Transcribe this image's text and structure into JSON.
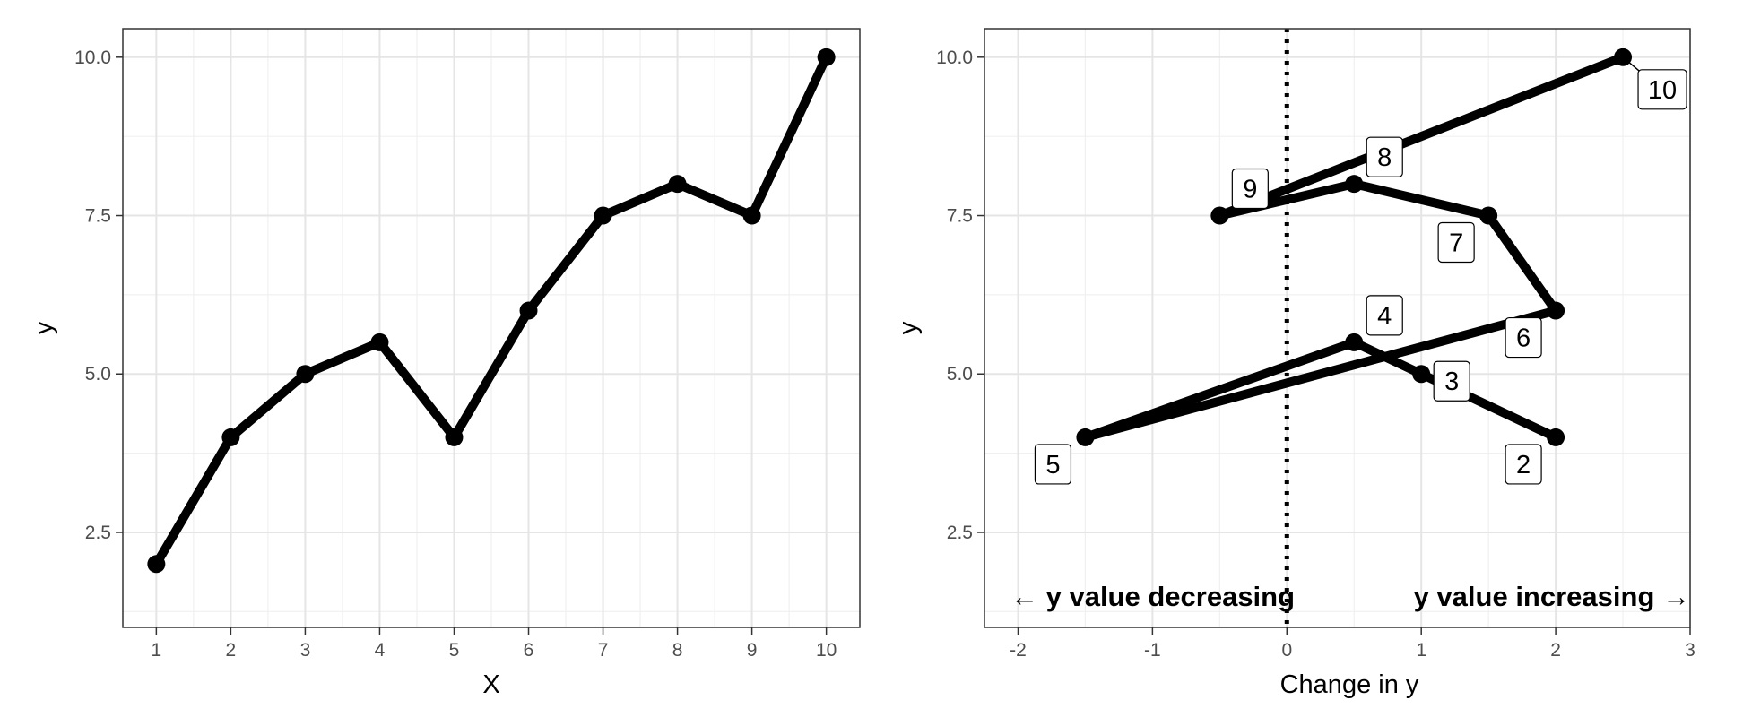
{
  "chart_data": [
    {
      "type": "line",
      "title": "",
      "xlabel": "X",
      "ylabel": "y",
      "xlim": [
        0.55,
        10.45
      ],
      "ylim": [
        1.0,
        10.45
      ],
      "xticks": [
        1,
        2,
        3,
        4,
        5,
        6,
        7,
        8,
        9,
        10
      ],
      "xtick_labels": [
        "1",
        "2",
        "3",
        "4",
        "5",
        "6",
        "7",
        "8",
        "9",
        "10"
      ],
      "yticks": [
        2.5,
        5.0,
        7.5,
        10.0
      ],
      "ytick_labels": [
        "2.5",
        "5.0",
        "7.5",
        "10.0"
      ],
      "grid": true,
      "points": [
        {
          "x": 1,
          "y": 2.0
        },
        {
          "x": 2,
          "y": 4.0
        },
        {
          "x": 3,
          "y": 5.0
        },
        {
          "x": 4,
          "y": 5.5
        },
        {
          "x": 5,
          "y": 4.0
        },
        {
          "x": 6,
          "y": 6.0
        },
        {
          "x": 7,
          "y": 7.5
        },
        {
          "x": 8,
          "y": 8.0
        },
        {
          "x": 9,
          "y": 7.5
        },
        {
          "x": 10,
          "y": 10.0
        }
      ]
    },
    {
      "type": "line",
      "title": "",
      "xlabel": "Change in y",
      "ylabel": "y",
      "xlim": [
        -2.25,
        3.0
      ],
      "ylim": [
        1.0,
        10.45
      ],
      "xticks": [
        -2,
        -1,
        0,
        1,
        2,
        3
      ],
      "xtick_labels": [
        "-2",
        "-1",
        "0",
        "1",
        "2",
        "3"
      ],
      "yticks": [
        2.5,
        5.0,
        7.5,
        10.0
      ],
      "ytick_labels": [
        "2.5",
        "5.0",
        "7.5",
        "10.0"
      ],
      "grid": true,
      "reference_line_x": 0,
      "annotation_left": "← y value decreasing",
      "annotation_right": "y value increasing →",
      "points": [
        {
          "x": 2.0,
          "y": 4.0,
          "label": "2"
        },
        {
          "x": 1.0,
          "y": 5.0,
          "label": "3"
        },
        {
          "x": 0.5,
          "y": 5.5,
          "label": "4"
        },
        {
          "x": -1.5,
          "y": 4.0,
          "label": "5"
        },
        {
          "x": 2.0,
          "y": 6.0,
          "label": "6"
        },
        {
          "x": 1.5,
          "y": 7.5,
          "label": "7"
        },
        {
          "x": 0.5,
          "y": 8.0,
          "label": "8"
        },
        {
          "x": -0.5,
          "y": 7.5,
          "label": "9"
        },
        {
          "x": 2.5,
          "y": 10.0,
          "label": "10"
        }
      ]
    }
  ]
}
